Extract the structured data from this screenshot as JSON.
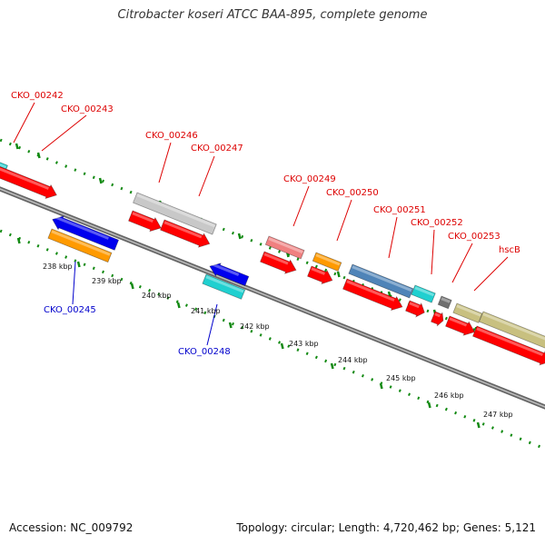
{
  "title": "Citrobacter koseri ATCC BAA-895, complete genome",
  "accession": "Accession: NC_009792",
  "summary": "Topology: circular; Length: 4,720,462 bp; Genes: 5,121",
  "colors": {
    "red": "#ff0000",
    "gray": "#c8c8c8",
    "blue": "#0000ee",
    "orange": "#ff9a00",
    "cyan": "#20d0d0",
    "pink": "#f08080",
    "steel": "#4f84b8",
    "darkgray": "#707070",
    "olive": "#c8c080",
    "green": "#128a12",
    "label_red": "#dd0000",
    "label_blue": "#0000cc"
  },
  "ticks": [
    "238 kbp",
    "239 kbp",
    "240 kbp",
    "241 kbp",
    "242 kbp",
    "243 kbp",
    "244 kbp",
    "245 kbp",
    "246 kbp",
    "247 kbp"
  ],
  "gene_labels_top": [
    "CKO_00242",
    "CKO_00243",
    "CKO_00246",
    "CKO_00247",
    "CKO_00249",
    "CKO_00250",
    "CKO_00251",
    "CKO_00252",
    "CKO_00253",
    "hscB"
  ],
  "gene_labels_bottom": [
    "CKO_00245",
    "CKO_00248"
  ]
}
